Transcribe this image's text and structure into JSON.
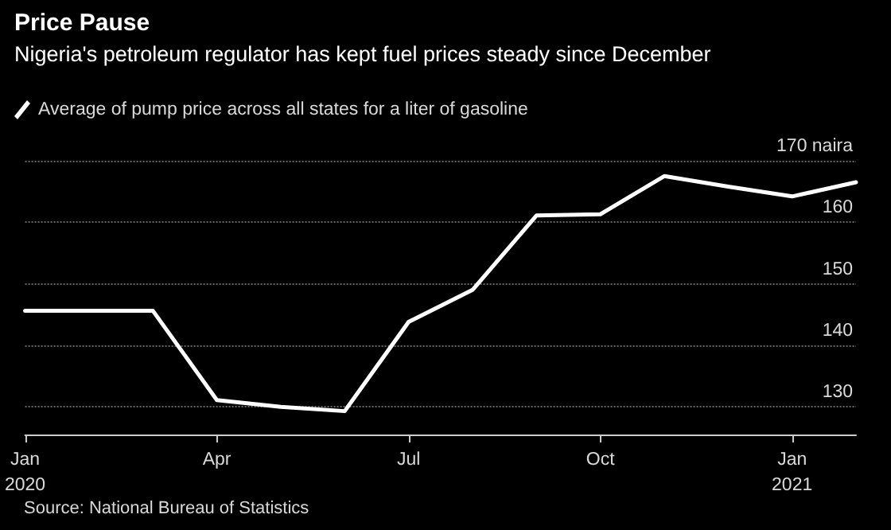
{
  "chart_data": {
    "type": "line",
    "title": "Price Pause",
    "subtitle": "Nigeria's petroleum regulator has kept fuel prices steady since December",
    "categories": [
      "Jan\n2020",
      null,
      null,
      "Apr",
      null,
      null,
      "Jul",
      null,
      null,
      "Oct",
      null,
      null,
      "Jan\n2021",
      null
    ],
    "series": [
      {
        "name": "Average of pump price across all states for a liter of gasoline",
        "color": "#ffffff",
        "values": [
          145.6,
          145.6,
          145.6,
          131.1,
          130.0,
          129.3,
          143.8,
          149.0,
          161.1,
          161.3,
          167.5,
          165.8,
          164.2,
          166.5
        ]
      }
    ],
    "ylim": [
      125.5,
      170
    ],
    "yticks": [
      130,
      140,
      150,
      160,
      {
        "value": 170,
        "label": "170 naira"
      }
    ],
    "grid": "y",
    "legend": "top left",
    "marker": "none",
    "line_style": "solid",
    "annotations": [
      "Source: National Bureau of Statistics"
    ]
  }
}
